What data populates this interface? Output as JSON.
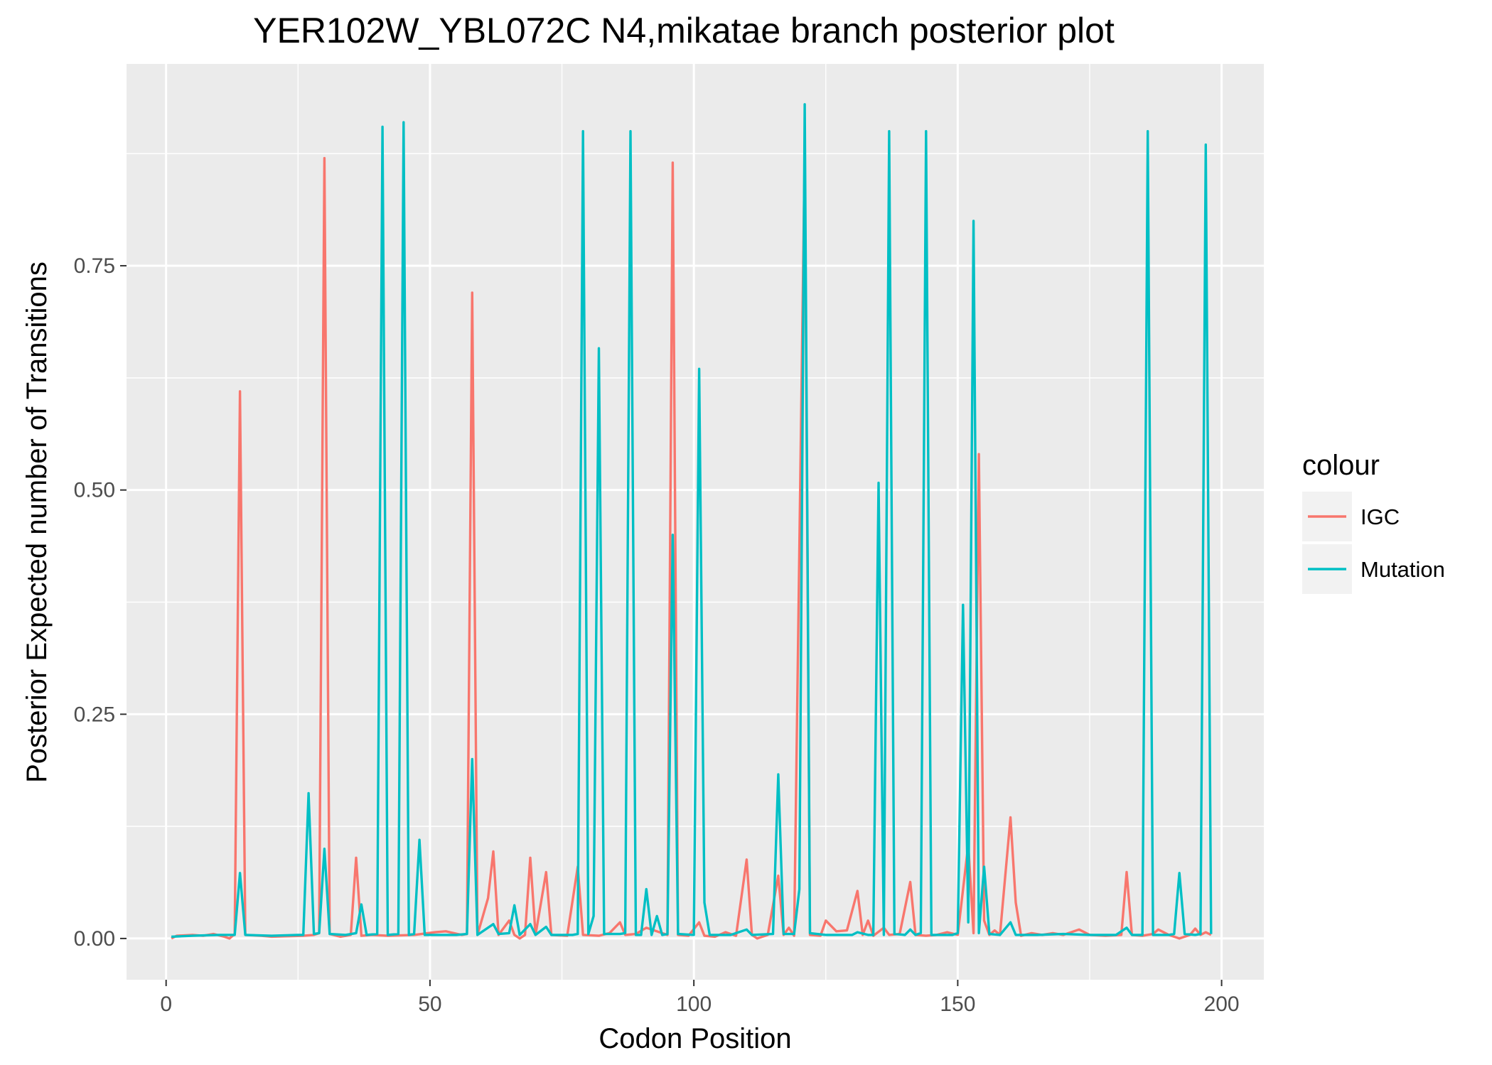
{
  "chart_data": {
    "type": "line",
    "title": "YER102W_YBL072C N4,mikatae branch posterior plot",
    "xlabel": "Codon Position",
    "ylabel": "Posterior Expected number of Transitions",
    "xlim": [
      -7.5,
      208
    ],
    "ylim": [
      -0.046,
      0.975
    ],
    "x_ticks": [
      0,
      50,
      100,
      150,
      200
    ],
    "y_ticks": [
      0.0,
      0.25,
      0.5,
      0.75
    ],
    "x_tick_labels": [
      "0",
      "50",
      "100",
      "150",
      "200"
    ],
    "y_tick_labels": [
      "0.00",
      "0.25",
      "0.50",
      "0.75"
    ],
    "grid": true,
    "legend": {
      "title": "colour",
      "position": "right",
      "entries": [
        "IGC",
        "Mutation"
      ]
    },
    "series": [
      {
        "name": "IGC",
        "color": "#F8766D",
        "points": [
          [
            1,
            0.0
          ],
          [
            2,
            0.003
          ],
          [
            5,
            0.004
          ],
          [
            7,
            0.003
          ],
          [
            9,
            0.005
          ],
          [
            11,
            0.002
          ],
          [
            12,
            0.0
          ],
          [
            13,
            0.005
          ],
          [
            14,
            0.61
          ],
          [
            15,
            0.004
          ],
          [
            18,
            0.003
          ],
          [
            20,
            0.002
          ],
          [
            26,
            0.003
          ],
          [
            28,
            0.004
          ],
          [
            29,
            0.006
          ],
          [
            30,
            0.87
          ],
          [
            31,
            0.005
          ],
          [
            33,
            0.002
          ],
          [
            35,
            0.004
          ],
          [
            36,
            0.09
          ],
          [
            37,
            0.003
          ],
          [
            39,
            0.004
          ],
          [
            42,
            0.003
          ],
          [
            47,
            0.004
          ],
          [
            51,
            0.007
          ],
          [
            53,
            0.008
          ],
          [
            56,
            0.004
          ],
          [
            57,
            0.005
          ],
          [
            58,
            0.72
          ],
          [
            59,
            0.004
          ],
          [
            61,
            0.045
          ],
          [
            62,
            0.097
          ],
          [
            63,
            0.004
          ],
          [
            65,
            0.02
          ],
          [
            66,
            0.004
          ],
          [
            67,
            0.0
          ],
          [
            68,
            0.004
          ],
          [
            69,
            0.09
          ],
          [
            70,
            0.004
          ],
          [
            72,
            0.074
          ],
          [
            73,
            0.004
          ],
          [
            76,
            0.003
          ],
          [
            78,
            0.08
          ],
          [
            79,
            0.004
          ],
          [
            82,
            0.003
          ],
          [
            84,
            0.006
          ],
          [
            86,
            0.018
          ],
          [
            87,
            0.004
          ],
          [
            89,
            0.005
          ],
          [
            91,
            0.012
          ],
          [
            95,
            0.004
          ],
          [
            96,
            0.865
          ],
          [
            97,
            0.004
          ],
          [
            99,
            0.003
          ],
          [
            101,
            0.018
          ],
          [
            102,
            0.003
          ],
          [
            104,
            0.002
          ],
          [
            106,
            0.007
          ],
          [
            108,
            0.003
          ],
          [
            110,
            0.088
          ],
          [
            111,
            0.004
          ],
          [
            112,
            0.0
          ],
          [
            114,
            0.004
          ],
          [
            116,
            0.07
          ],
          [
            117,
            0.004
          ],
          [
            118,
            0.012
          ],
          [
            119,
            0.003
          ],
          [
            121,
            0.876
          ],
          [
            122,
            0.004
          ],
          [
            124,
            0.003
          ],
          [
            125,
            0.02
          ],
          [
            127,
            0.008
          ],
          [
            129,
            0.009
          ],
          [
            131,
            0.053
          ],
          [
            132,
            0.004
          ],
          [
            133,
            0.02
          ],
          [
            134,
            0.003
          ],
          [
            136,
            0.012
          ],
          [
            137,
            0.004
          ],
          [
            139,
            0.005
          ],
          [
            141,
            0.063
          ],
          [
            142,
            0.004
          ],
          [
            144,
            0.003
          ],
          [
            146,
            0.004
          ],
          [
            148,
            0.007
          ],
          [
            150,
            0.004
          ],
          [
            152,
            0.105
          ],
          [
            153,
            0.006
          ],
          [
            154,
            0.54
          ],
          [
            155,
            0.02
          ],
          [
            156,
            0.004
          ],
          [
            157,
            0.009
          ],
          [
            158,
            0.004
          ],
          [
            160,
            0.135
          ],
          [
            161,
            0.04
          ],
          [
            162,
            0.003
          ],
          [
            164,
            0.006
          ],
          [
            166,
            0.004
          ],
          [
            168,
            0.006
          ],
          [
            170,
            0.004
          ],
          [
            173,
            0.01
          ],
          [
            175,
            0.004
          ],
          [
            178,
            0.003
          ],
          [
            181,
            0.004
          ],
          [
            182,
            0.074
          ],
          [
            183,
            0.004
          ],
          [
            185,
            0.003
          ],
          [
            187,
            0.005
          ],
          [
            188,
            0.01
          ],
          [
            190,
            0.004
          ],
          [
            192,
            0.0
          ],
          [
            194,
            0.004
          ],
          [
            195,
            0.011
          ],
          [
            196,
            0.004
          ],
          [
            197,
            0.007
          ],
          [
            198,
            0.004
          ]
        ]
      },
      {
        "name": "Mutation",
        "color": "#00BFC4",
        "points": [
          [
            1,
            0.002
          ],
          [
            5,
            0.003
          ],
          [
            10,
            0.004
          ],
          [
            13,
            0.004
          ],
          [
            14,
            0.073
          ],
          [
            15,
            0.004
          ],
          [
            20,
            0.003
          ],
          [
            25,
            0.004
          ],
          [
            26,
            0.004
          ],
          [
            27,
            0.162
          ],
          [
            28,
            0.005
          ],
          [
            29,
            0.006
          ],
          [
            30,
            0.1
          ],
          [
            31,
            0.005
          ],
          [
            34,
            0.004
          ],
          [
            36,
            0.006
          ],
          [
            37,
            0.038
          ],
          [
            38,
            0.004
          ],
          [
            40,
            0.005
          ],
          [
            41,
            0.905
          ],
          [
            42,
            0.004
          ],
          [
            44,
            0.005
          ],
          [
            45,
            0.91
          ],
          [
            46,
            0.004
          ],
          [
            47,
            0.005
          ],
          [
            48,
            0.11
          ],
          [
            49,
            0.004
          ],
          [
            55,
            0.004
          ],
          [
            57,
            0.005
          ],
          [
            58,
            0.2
          ],
          [
            59,
            0.004
          ],
          [
            62,
            0.016
          ],
          [
            63,
            0.005
          ],
          [
            65,
            0.006
          ],
          [
            66,
            0.037
          ],
          [
            67,
            0.004
          ],
          [
            69,
            0.016
          ],
          [
            70,
            0.004
          ],
          [
            72,
            0.013
          ],
          [
            73,
            0.004
          ],
          [
            77,
            0.004
          ],
          [
            78,
            0.005
          ],
          [
            79,
            0.9
          ],
          [
            80,
            0.005
          ],
          [
            81,
            0.025
          ],
          [
            82,
            0.658
          ],
          [
            83,
            0.005
          ],
          [
            86,
            0.005
          ],
          [
            87,
            0.006
          ],
          [
            88,
            0.9
          ],
          [
            89,
            0.004
          ],
          [
            90,
            0.004
          ],
          [
            91,
            0.055
          ],
          [
            92,
            0.004
          ],
          [
            93,
            0.025
          ],
          [
            94,
            0.004
          ],
          [
            95,
            0.005
          ],
          [
            96,
            0.45
          ],
          [
            97,
            0.005
          ],
          [
            100,
            0.004
          ],
          [
            101,
            0.635
          ],
          [
            102,
            0.04
          ],
          [
            103,
            0.004
          ],
          [
            107,
            0.004
          ],
          [
            110,
            0.01
          ],
          [
            111,
            0.004
          ],
          [
            115,
            0.005
          ],
          [
            116,
            0.183
          ],
          [
            117,
            0.005
          ],
          [
            119,
            0.005
          ],
          [
            120,
            0.055
          ],
          [
            121,
            0.93
          ],
          [
            122,
            0.006
          ],
          [
            125,
            0.004
          ],
          [
            130,
            0.004
          ],
          [
            131,
            0.007
          ],
          [
            133,
            0.004
          ],
          [
            134,
            0.004
          ],
          [
            135,
            0.508
          ],
          [
            136,
            0.004
          ],
          [
            137,
            0.9
          ],
          [
            138,
            0.005
          ],
          [
            140,
            0.004
          ],
          [
            141,
            0.01
          ],
          [
            142,
            0.004
          ],
          [
            143,
            0.006
          ],
          [
            144,
            0.9
          ],
          [
            145,
            0.004
          ],
          [
            149,
            0.004
          ],
          [
            150,
            0.006
          ],
          [
            151,
            0.372
          ],
          [
            152,
            0.018
          ],
          [
            153,
            0.8
          ],
          [
            154,
            0.006
          ],
          [
            155,
            0.08
          ],
          [
            156,
            0.005
          ],
          [
            158,
            0.004
          ],
          [
            160,
            0.018
          ],
          [
            161,
            0.004
          ],
          [
            165,
            0.004
          ],
          [
            170,
            0.005
          ],
          [
            175,
            0.004
          ],
          [
            180,
            0.004
          ],
          [
            182,
            0.012
          ],
          [
            183,
            0.004
          ],
          [
            185,
            0.004
          ],
          [
            186,
            0.9
          ],
          [
            187,
            0.004
          ],
          [
            190,
            0.004
          ],
          [
            191,
            0.005
          ],
          [
            192,
            0.073
          ],
          [
            193,
            0.005
          ],
          [
            195,
            0.004
          ],
          [
            196,
            0.005
          ],
          [
            197,
            0.885
          ],
          [
            198,
            0.005
          ]
        ]
      }
    ]
  }
}
